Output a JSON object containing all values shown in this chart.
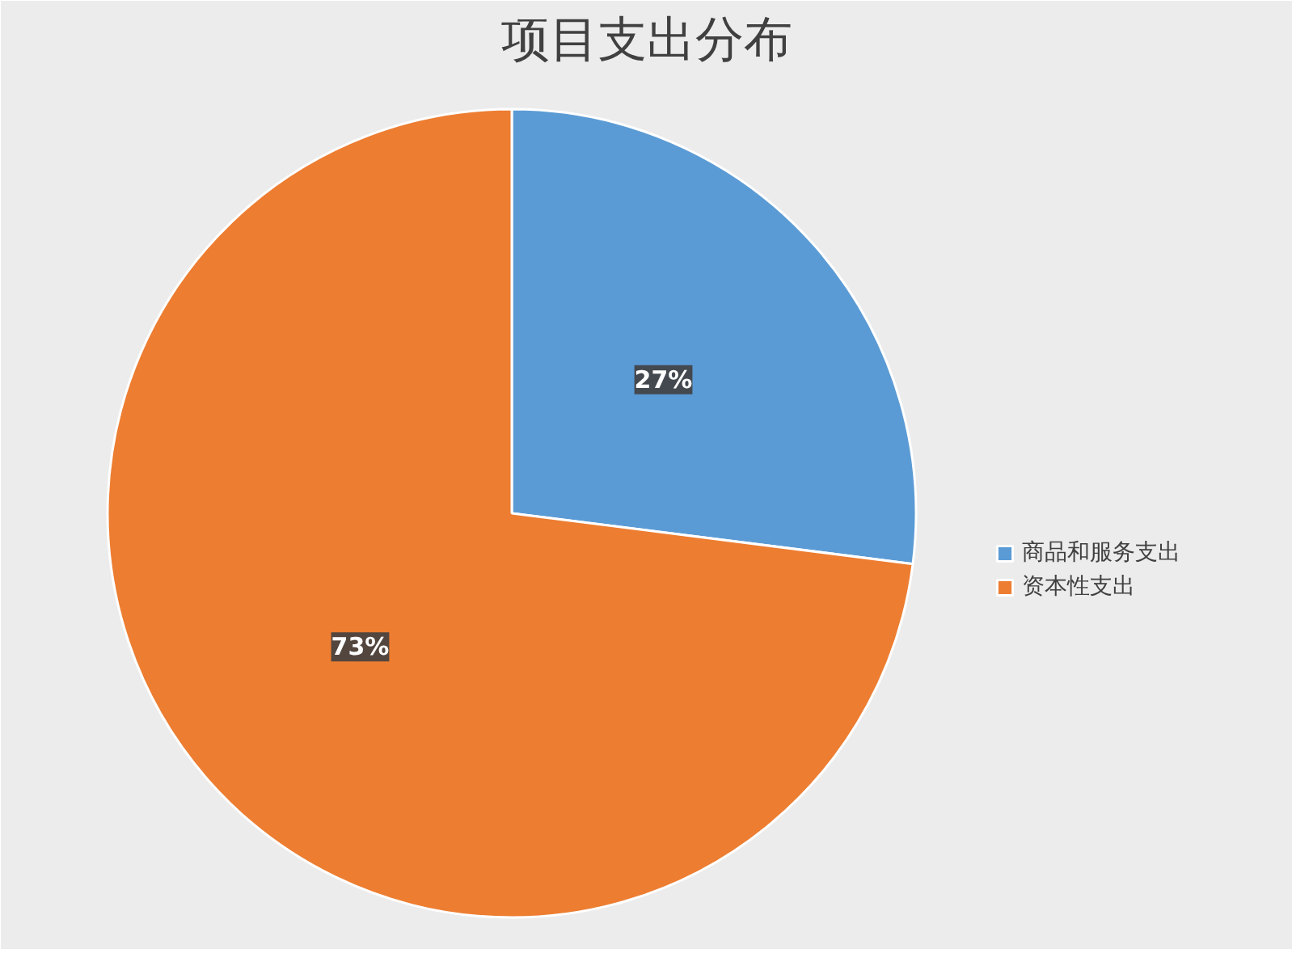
{
  "chart_data": {
    "type": "pie",
    "title": "项目支出分布",
    "categories": [
      "商品和服务支出",
      "资本性支出"
    ],
    "values": [
      27,
      73
    ],
    "colors": [
      "#5b9bd5",
      "#ed7d31"
    ],
    "value_labels": [
      "27%",
      "73%"
    ],
    "legend": "right"
  }
}
